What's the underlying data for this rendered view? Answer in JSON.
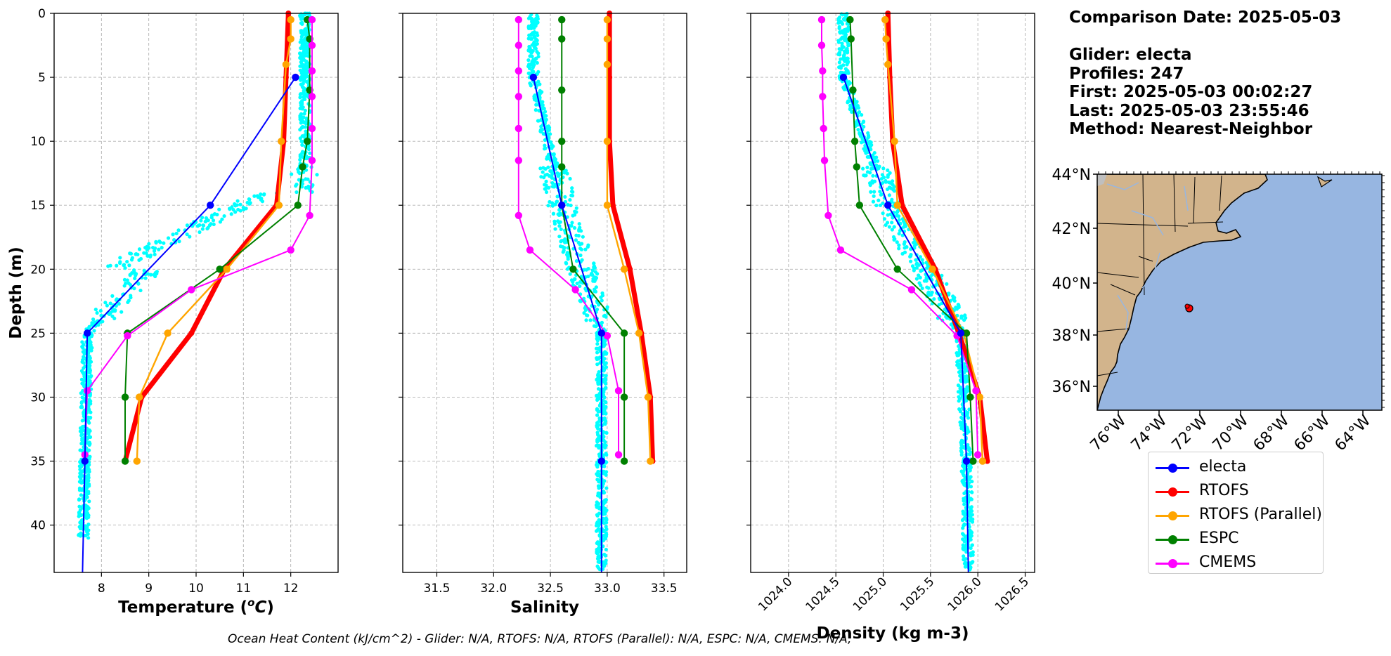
{
  "chart_data": [
    {
      "type": "line",
      "xlabel": "Temperature (°C)",
      "ylabel": "Depth (m)",
      "xlim": [
        7.0,
        13.0
      ],
      "ylim": [
        43.7,
        0
      ],
      "xticks": [
        "8",
        "9",
        "10",
        "11",
        "12"
      ],
      "yticks": [
        "0",
        "5",
        "10",
        "15",
        "20",
        "25",
        "30",
        "35",
        "40"
      ],
      "grid": true,
      "series": [
        {
          "name": "electa",
          "x": [
            12.1,
            10.3,
            7.7,
            7.65,
            7.6
          ],
          "y": [
            5,
            15,
            25,
            35,
            43.7
          ]
        },
        {
          "name": "RTOFS",
          "x": [
            11.95,
            11.9,
            11.85,
            11.7,
            10.6,
            9.9,
            8.85,
            8.5
          ],
          "y": [
            0,
            5,
            10,
            15,
            20,
            25,
            30,
            35
          ]
        },
        {
          "name": "RTOFS (Parallel)",
          "x": [
            12.0,
            12.0,
            11.9,
            11.8,
            11.75,
            10.65,
            9.4,
            8.8,
            8.75
          ],
          "y": [
            0.5,
            2,
            4,
            10,
            15,
            20,
            25,
            30,
            35
          ]
        },
        {
          "name": "ESPC",
          "x": [
            12.35,
            12.4,
            12.4,
            12.35,
            12.25,
            12.15,
            10.5,
            8.55,
            8.5,
            8.5
          ],
          "y": [
            0.5,
            2,
            6,
            10,
            12,
            15,
            20,
            25,
            30,
            35
          ]
        },
        {
          "name": "CMEMS",
          "x": [
            12.45,
            12.45,
            12.45,
            12.45,
            12.45,
            12.45,
            12.4,
            12.0,
            9.9,
            8.55,
            7.7,
            7.65
          ],
          "y": [
            0.5,
            2.5,
            4.5,
            6.5,
            9,
            11.5,
            15.8,
            18.5,
            21.6,
            25.2,
            29.5,
            34.5
          ]
        }
      ]
    },
    {
      "type": "line",
      "xlabel": "Salinity",
      "xlim": [
        31.2,
        33.7
      ],
      "ylim": [
        43.7,
        0
      ],
      "xticks": [
        "31.5",
        "32.0",
        "32.5",
        "33.0",
        "33.5"
      ],
      "grid": true,
      "series": [
        {
          "name": "electa",
          "x": [
            32.35,
            32.6,
            32.95,
            32.95,
            32.95
          ],
          "y": [
            5,
            15,
            25,
            35,
            43.7
          ]
        },
        {
          "name": "RTOFS",
          "x": [
            33.02,
            33.02,
            33.02,
            33.05,
            33.2,
            33.3,
            33.38,
            33.4
          ],
          "y": [
            0,
            5,
            10,
            15,
            20,
            25,
            30,
            35
          ]
        },
        {
          "name": "RTOFS (Parallel)",
          "x": [
            33.0,
            33.0,
            33.0,
            33.0,
            33.0,
            33.15,
            33.28,
            33.36,
            33.38
          ],
          "y": [
            0.5,
            2,
            4,
            10,
            15,
            20,
            25,
            30,
            35
          ]
        },
        {
          "name": "ESPC",
          "x": [
            32.6,
            32.6,
            32.6,
            32.6,
            32.6,
            32.6,
            32.7,
            33.15,
            33.15,
            33.15
          ],
          "y": [
            0.5,
            2,
            6,
            10,
            12,
            15,
            20,
            25,
            30,
            35
          ]
        },
        {
          "name": "CMEMS",
          "x": [
            32.22,
            32.22,
            32.22,
            32.22,
            32.22,
            32.22,
            32.22,
            32.32,
            32.72,
            33.0,
            33.1,
            33.1
          ],
          "y": [
            0.5,
            2.5,
            4.5,
            6.5,
            9,
            11.5,
            15.8,
            18.5,
            21.6,
            25.2,
            29.5,
            34.5
          ]
        }
      ]
    },
    {
      "type": "line",
      "xlabel": "Density (kg m-3)",
      "xlim": [
        1023.6,
        1026.6
      ],
      "ylim": [
        43.7,
        0
      ],
      "xticks": [
        "1024.0",
        "1024.5",
        "1025.0",
        "1025.5",
        "1026.0",
        "1026.5"
      ],
      "grid": true,
      "series": [
        {
          "name": "electa",
          "x": [
            1024.58,
            1025.05,
            1025.82,
            1025.88,
            1025.9
          ],
          "y": [
            5,
            15,
            25,
            35,
            43.7
          ]
        },
        {
          "name": "RTOFS",
          "x": [
            1025.05,
            1025.07,
            1025.1,
            1025.2,
            1025.55,
            1025.8,
            1026.02,
            1026.1
          ],
          "y": [
            0,
            5,
            10,
            15,
            20,
            25,
            30,
            35
          ]
        },
        {
          "name": "RTOFS (Parallel)",
          "x": [
            1025.02,
            1025.03,
            1025.05,
            1025.12,
            1025.15,
            1025.52,
            1025.85,
            1026.02,
            1026.05
          ],
          "y": [
            0.5,
            2,
            4,
            10,
            15,
            20,
            25,
            30,
            35
          ]
        },
        {
          "name": "ESPC",
          "x": [
            1024.65,
            1024.66,
            1024.68,
            1024.7,
            1024.72,
            1024.75,
            1025.15,
            1025.88,
            1025.92,
            1025.95
          ],
          "y": [
            0.5,
            2,
            6,
            10,
            12,
            15,
            20,
            25,
            30,
            35
          ]
        },
        {
          "name": "CMEMS",
          "x": [
            1024.35,
            1024.35,
            1024.36,
            1024.36,
            1024.37,
            1024.38,
            1024.42,
            1024.55,
            1025.3,
            1025.78,
            1025.98,
            1026.0
          ],
          "y": [
            0.5,
            2.5,
            4.5,
            6.5,
            9,
            11.5,
            15.8,
            18.5,
            21.6,
            25.2,
            29.5,
            34.5
          ]
        }
      ]
    }
  ],
  "info": {
    "comparison": "Comparison Date: 2025-05-03",
    "glider": "Glider: electa",
    "profiles": "Profiles: 247",
    "first": "First: 2025-05-03 00:02:27",
    "last": "Last: 2025-05-03 23:55:46",
    "method": "Method: Nearest-Neighbor"
  },
  "map": {
    "lat_ticks": [
      "44°N",
      "42°N",
      "40°N",
      "38°N",
      "36°N"
    ],
    "lon_ticks": [
      "76°W",
      "74°W",
      "72°W",
      "70°W",
      "68°W",
      "66°W",
      "64°W"
    ]
  },
  "legend": [
    {
      "label": "electa",
      "color": "#0000ff"
    },
    {
      "label": "RTOFS",
      "color": "#ff0000"
    },
    {
      "label": "RTOFS (Parallel)",
      "color": "#ffa500"
    },
    {
      "label": "ESPC",
      "color": "#008000"
    },
    {
      "label": "CMEMS",
      "color": "#ff00ff"
    }
  ],
  "colors": {
    "scatter": "#00ffff",
    "ocean": "#97b6e1",
    "land": "#d2b48c"
  },
  "footer": "Ocean Heat Content (kJ/cm^2) - Glider: N/A,  RTOFS: N/A,  RTOFS (Parallel): N/A,  ESPC: N/A,  CMEMS: N/A,"
}
